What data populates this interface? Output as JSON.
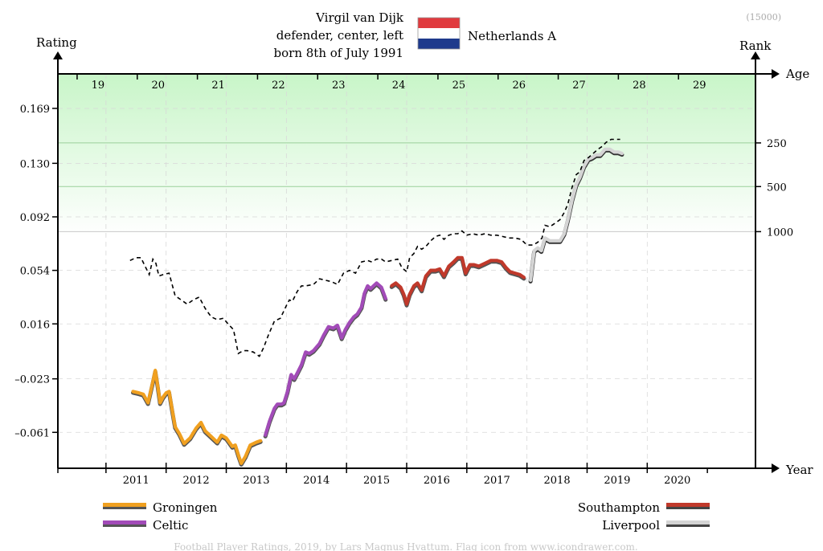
{
  "header": {
    "player_name": "Virgil van Dijk",
    "position": "defender, center, left",
    "born": "born 8th of July 1991",
    "team": "Netherlands A",
    "badge": "(15000)",
    "flag_colors": [
      "#e03a3e",
      "#ffffff",
      "#1e3a8c"
    ]
  },
  "footer": {
    "credit": "Football Player Ratings, 2019, by Lars Magnus Hvattum. Flag icon from www.icondrawer.com."
  },
  "chart_data": {
    "type": "line",
    "ylabel": "Rating",
    "y2label": "Rank",
    "xlabel_top": "Age",
    "xlabel_bottom": "Year",
    "ylim": [
      -0.0865,
      0.1935
    ],
    "xlim": [
      2010.2,
      2021.8
    ],
    "yticks": [
      -0.061,
      -0.023,
      0.016,
      0.054,
      0.092,
      0.13,
      0.169
    ],
    "ytick_labels": [
      "–0.061",
      "–0.023",
      "0.016",
      "0.054",
      "0.092",
      "0.130",
      "0.169"
    ],
    "year_ticks": [
      2011,
      2012,
      2013,
      2014,
      2015,
      2016,
      2017,
      2018,
      2019,
      2020
    ],
    "year_labels": [
      "2011",
      "2012",
      "2013",
      "2014",
      "2015",
      "2016",
      "2017",
      "2018",
      "2019",
      "2020"
    ],
    "age_labels": [
      "19",
      "20",
      "21",
      "22",
      "23",
      "24",
      "25",
      "26",
      "27",
      "28",
      "29"
    ],
    "age_start_year": 2010.52,
    "rank_levels": [
      {
        "label": "250",
        "rating": 0.1445
      },
      {
        "label": "500",
        "rating": 0.1135
      },
      {
        "label": "1000",
        "rating": 0.0815
      }
    ],
    "grid": true,
    "legend_left": [
      {
        "name": "Groningen",
        "color": "#f0a020"
      },
      {
        "name": "Celtic",
        "color": "#a24bb8"
      }
    ],
    "legend_right": [
      {
        "name": "Southampton",
        "color": "#c0392b"
      },
      {
        "name": "Liverpool",
        "color": "#d4d4d4"
      }
    ],
    "series": [
      {
        "name": "Groningen",
        "color": "#f0a020",
        "points": [
          [
            2011.45,
            -0.032
          ],
          [
            2011.55,
            -0.033
          ],
          [
            2011.62,
            -0.034
          ],
          [
            2011.7,
            -0.04
          ],
          [
            2011.78,
            -0.025
          ],
          [
            2011.82,
            -0.017
          ],
          [
            2011.86,
            -0.028
          ],
          [
            2011.9,
            -0.04
          ],
          [
            2011.95,
            -0.036
          ],
          [
            2012.0,
            -0.033
          ],
          [
            2012.05,
            -0.032
          ],
          [
            2012.1,
            -0.045
          ],
          [
            2012.15,
            -0.057
          ],
          [
            2012.22,
            -0.062
          ],
          [
            2012.3,
            -0.069
          ],
          [
            2012.4,
            -0.065
          ],
          [
            2012.5,
            -0.058
          ],
          [
            2012.58,
            -0.054
          ],
          [
            2012.65,
            -0.06
          ],
          [
            2012.75,
            -0.064
          ],
          [
            2012.85,
            -0.068
          ],
          [
            2012.92,
            -0.063
          ],
          [
            2013.0,
            -0.065
          ],
          [
            2013.1,
            -0.071
          ],
          [
            2013.15,
            -0.07
          ],
          [
            2013.2,
            -0.077
          ],
          [
            2013.25,
            -0.083
          ],
          [
            2013.32,
            -0.078
          ],
          [
            2013.4,
            -0.07
          ],
          [
            2013.5,
            -0.068
          ],
          [
            2013.57,
            -0.067
          ]
        ]
      },
      {
        "name": "Celtic",
        "color": "#a24bb8",
        "points": [
          [
            2013.65,
            -0.063
          ],
          [
            2013.72,
            -0.053
          ],
          [
            2013.8,
            -0.044
          ],
          [
            2013.85,
            -0.041
          ],
          [
            2013.92,
            -0.041
          ],
          [
            2013.96,
            -0.04
          ],
          [
            2014.02,
            -0.032
          ],
          [
            2014.08,
            -0.02
          ],
          [
            2014.13,
            -0.023
          ],
          [
            2014.18,
            -0.019
          ],
          [
            2014.25,
            -0.013
          ],
          [
            2014.32,
            -0.004
          ],
          [
            2014.38,
            -0.005
          ],
          [
            2014.45,
            -0.003
          ],
          [
            2014.55,
            0.002
          ],
          [
            2014.62,
            0.008
          ],
          [
            2014.7,
            0.014
          ],
          [
            2014.78,
            0.013
          ],
          [
            2014.85,
            0.015
          ],
          [
            2014.92,
            0.006
          ],
          [
            2014.98,
            0.012
          ],
          [
            2015.05,
            0.017
          ],
          [
            2015.12,
            0.021
          ],
          [
            2015.18,
            0.023
          ],
          [
            2015.25,
            0.028
          ],
          [
            2015.3,
            0.038
          ],
          [
            2015.35,
            0.043
          ],
          [
            2015.4,
            0.041
          ],
          [
            2015.5,
            0.045
          ],
          [
            2015.58,
            0.042
          ],
          [
            2015.65,
            0.034
          ]
        ]
      },
      {
        "name": "Southampton",
        "color": "#c0392b",
        "points": [
          [
            2015.75,
            0.043
          ],
          [
            2015.82,
            0.045
          ],
          [
            2015.9,
            0.042
          ],
          [
            2015.95,
            0.037
          ],
          [
            2016.0,
            0.03
          ],
          [
            2016.05,
            0.037
          ],
          [
            2016.12,
            0.043
          ],
          [
            2016.18,
            0.045
          ],
          [
            2016.25,
            0.04
          ],
          [
            2016.32,
            0.05
          ],
          [
            2016.4,
            0.054
          ],
          [
            2016.48,
            0.054
          ],
          [
            2016.55,
            0.055
          ],
          [
            2016.62,
            0.05
          ],
          [
            2016.7,
            0.057
          ],
          [
            2016.78,
            0.06
          ],
          [
            2016.85,
            0.063
          ],
          [
            2016.92,
            0.063
          ],
          [
            2016.98,
            0.052
          ],
          [
            2017.05,
            0.058
          ],
          [
            2017.12,
            0.058
          ],
          [
            2017.2,
            0.057
          ],
          [
            2017.3,
            0.059
          ],
          [
            2017.4,
            0.061
          ],
          [
            2017.5,
            0.061
          ],
          [
            2017.58,
            0.06
          ],
          [
            2017.65,
            0.056
          ],
          [
            2017.72,
            0.053
          ],
          [
            2017.8,
            0.052
          ],
          [
            2017.88,
            0.051
          ],
          [
            2017.95,
            0.049
          ]
        ]
      },
      {
        "name": "Liverpool",
        "color": "#d4d4d4",
        "points": [
          [
            2018.06,
            0.047
          ],
          [
            2018.12,
            0.068
          ],
          [
            2018.18,
            0.07
          ],
          [
            2018.24,
            0.068
          ],
          [
            2018.3,
            0.077
          ],
          [
            2018.38,
            0.075
          ],
          [
            2018.48,
            0.075
          ],
          [
            2018.55,
            0.075
          ],
          [
            2018.62,
            0.08
          ],
          [
            2018.68,
            0.09
          ],
          [
            2018.75,
            0.104
          ],
          [
            2018.82,
            0.115
          ],
          [
            2018.88,
            0.12
          ],
          [
            2018.95,
            0.128
          ],
          [
            2019.02,
            0.133
          ],
          [
            2019.08,
            0.134
          ],
          [
            2019.15,
            0.136
          ],
          [
            2019.22,
            0.136
          ],
          [
            2019.3,
            0.14
          ],
          [
            2019.38,
            0.14
          ],
          [
            2019.45,
            0.138
          ],
          [
            2019.52,
            0.138
          ],
          [
            2019.58,
            0.137
          ]
        ]
      },
      {
        "name": "",
        "color": "#000000",
        "dashed": true,
        "points": [
          [
            2011.4,
            0.061
          ],
          [
            2011.5,
            0.063
          ],
          [
            2011.58,
            0.063
          ],
          [
            2011.65,
            0.057
          ],
          [
            2011.72,
            0.051
          ],
          [
            2011.78,
            0.062
          ],
          [
            2011.83,
            0.059
          ],
          [
            2011.88,
            0.05
          ],
          [
            2011.95,
            0.051
          ],
          [
            2012.05,
            0.052
          ],
          [
            2012.15,
            0.036
          ],
          [
            2012.25,
            0.033
          ],
          [
            2012.35,
            0.03
          ],
          [
            2012.45,
            0.033
          ],
          [
            2012.55,
            0.035
          ],
          [
            2012.65,
            0.027
          ],
          [
            2012.75,
            0.021
          ],
          [
            2012.85,
            0.019
          ],
          [
            2012.95,
            0.02
          ],
          [
            2013.05,
            0.015
          ],
          [
            2013.12,
            0.012
          ],
          [
            2013.2,
            -0.005
          ],
          [
            2013.28,
            -0.003
          ],
          [
            2013.35,
            -0.003
          ],
          [
            2013.45,
            -0.004
          ],
          [
            2013.55,
            -0.007
          ],
          [
            2013.62,
            -0.001
          ],
          [
            2013.7,
            0.008
          ],
          [
            2013.8,
            0.018
          ],
          [
            2013.9,
            0.02
          ],
          [
            2014.0,
            0.029
          ],
          [
            2014.05,
            0.033
          ],
          [
            2014.1,
            0.032
          ],
          [
            2014.18,
            0.039
          ],
          [
            2014.25,
            0.043
          ],
          [
            2014.32,
            0.043
          ],
          [
            2014.45,
            0.044
          ],
          [
            2014.55,
            0.048
          ],
          [
            2014.65,
            0.047
          ],
          [
            2014.75,
            0.046
          ],
          [
            2014.85,
            0.044
          ],
          [
            2014.95,
            0.052
          ],
          [
            2015.05,
            0.054
          ],
          [
            2015.15,
            0.052
          ],
          [
            2015.25,
            0.06
          ],
          [
            2015.35,
            0.061
          ],
          [
            2015.42,
            0.06
          ],
          [
            2015.5,
            0.062
          ],
          [
            2015.58,
            0.062
          ],
          [
            2015.65,
            0.06
          ],
          [
            2015.75,
            0.061
          ],
          [
            2015.85,
            0.062
          ],
          [
            2015.92,
            0.056
          ],
          [
            2016.0,
            0.053
          ],
          [
            2016.05,
            0.063
          ],
          [
            2016.12,
            0.066
          ],
          [
            2016.18,
            0.071
          ],
          [
            2016.25,
            0.069
          ],
          [
            2016.32,
            0.071
          ],
          [
            2016.4,
            0.075
          ],
          [
            2016.48,
            0.078
          ],
          [
            2016.55,
            0.079
          ],
          [
            2016.62,
            0.076
          ],
          [
            2016.7,
            0.079
          ],
          [
            2016.78,
            0.08
          ],
          [
            2016.85,
            0.08
          ],
          [
            2016.92,
            0.082
          ],
          [
            2017.0,
            0.079
          ],
          [
            2017.1,
            0.08
          ],
          [
            2017.2,
            0.079
          ],
          [
            2017.3,
            0.08
          ],
          [
            2017.4,
            0.079
          ],
          [
            2017.5,
            0.079
          ],
          [
            2017.6,
            0.078
          ],
          [
            2017.7,
            0.077
          ],
          [
            2017.8,
            0.077
          ],
          [
            2017.9,
            0.076
          ],
          [
            2018.0,
            0.072
          ],
          [
            2018.1,
            0.072
          ],
          [
            2018.18,
            0.074
          ],
          [
            2018.25,
            0.077
          ],
          [
            2018.3,
            0.086
          ],
          [
            2018.38,
            0.085
          ],
          [
            2018.45,
            0.087
          ],
          [
            2018.55,
            0.09
          ],
          [
            2018.62,
            0.095
          ],
          [
            2018.68,
            0.101
          ],
          [
            2018.75,
            0.113
          ],
          [
            2018.82,
            0.122
          ],
          [
            2018.88,
            0.124
          ],
          [
            2018.95,
            0.132
          ],
          [
            2019.02,
            0.134
          ],
          [
            2019.1,
            0.137
          ],
          [
            2019.18,
            0.14
          ],
          [
            2019.25,
            0.142
          ],
          [
            2019.32,
            0.145
          ],
          [
            2019.4,
            0.147
          ],
          [
            2019.48,
            0.147
          ],
          [
            2019.55,
            0.147
          ]
        ]
      }
    ]
  }
}
